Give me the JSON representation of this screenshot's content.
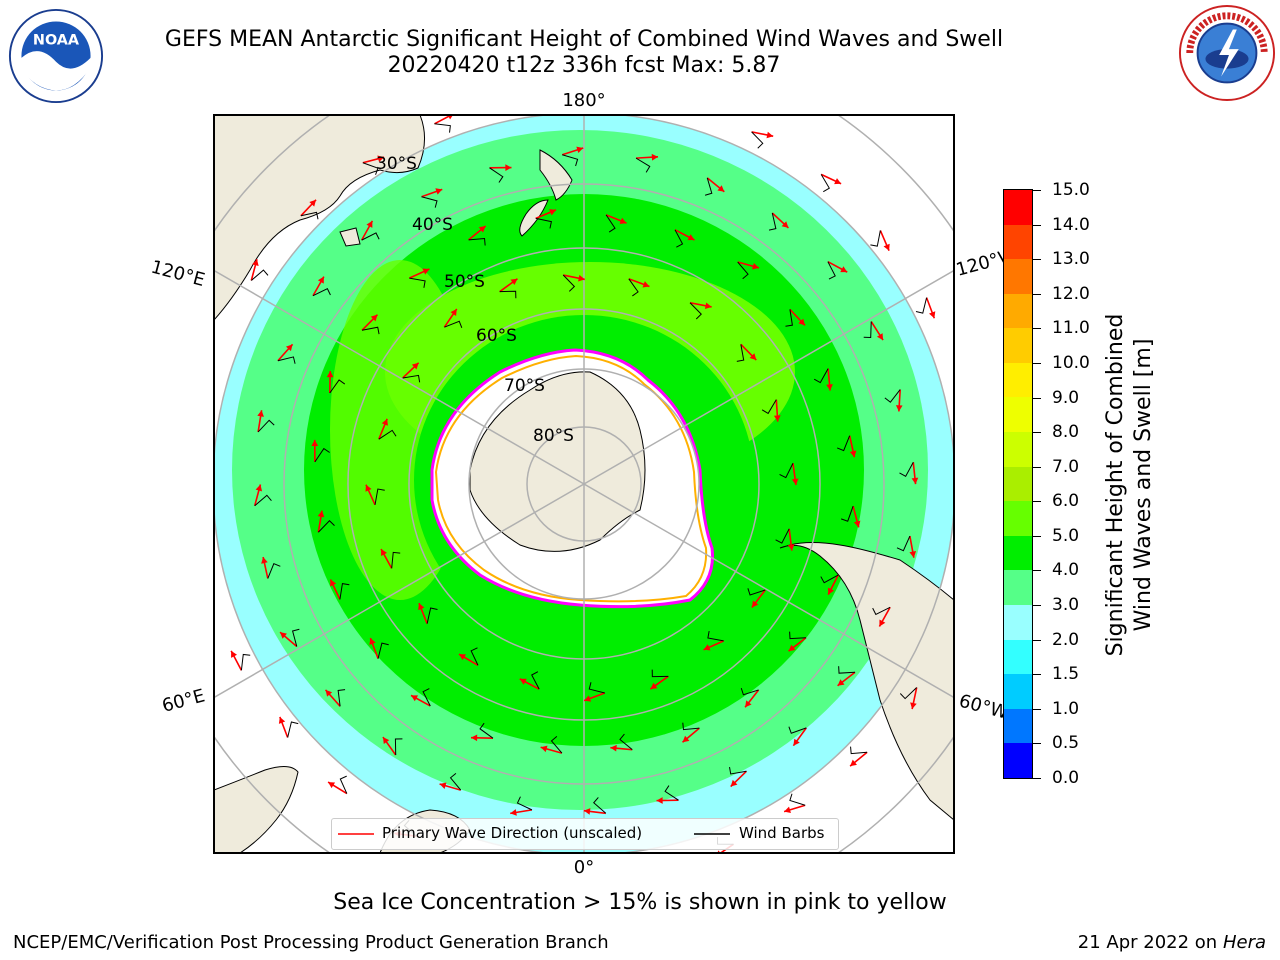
{
  "title": {
    "line1": "GEFS MEAN Antarctic Significant Height of Combined Wind Waves and Swell",
    "line2": "20220420 t12z 336h fcst   Max: 5.87"
  },
  "map": {
    "projection": "south-polar-stereographic",
    "longitude_labels": {
      "top": "180°",
      "bottom": "0°",
      "upper_left": "120°E",
      "lower_left": "60°E",
      "upper_right": "120°W",
      "lower_right": "60°W"
    },
    "latitude_labels": [
      "30°S",
      "40°S",
      "50°S",
      "60°S",
      "70°S",
      "80°S"
    ],
    "colors": {
      "land": "#efebdc",
      "coast": "#000000",
      "grid": "#b0b0b0",
      "arrows": "#ff0000",
      "ice_pink": "#ff00ff",
      "ice_yellow": "#ffd700"
    }
  },
  "colorbar": {
    "title": "Significant Height of Combined Wind Waves and Swell [m]",
    "title_line1": "Significant Height of Combined",
    "title_line2": "Wind Waves and Swell [m]",
    "ticks": [
      "0.0",
      "0.5",
      "1.0",
      "1.5",
      "2.0",
      "3.0",
      "4.0",
      "5.0",
      "6.0",
      "7.0",
      "8.0",
      "9.0",
      "10.0",
      "11.0",
      "12.0",
      "13.0",
      "14.0",
      "15.0"
    ],
    "colors": [
      "#0000ff",
      "#0077ff",
      "#00ccff",
      "#33ffff",
      "#99ffff",
      "#55ff88",
      "#00ee00",
      "#66ff00",
      "#aaee00",
      "#ccff00",
      "#eeff00",
      "#ffee00",
      "#ffcc00",
      "#ffaa00",
      "#ff7700",
      "#ff4400",
      "#ff0000"
    ]
  },
  "legend": {
    "primary_wave": "Primary Wave Direction (unscaled)",
    "wind_barbs": "Wind Barbs"
  },
  "ice_note": "Sea Ice Concentration > 15% is shown in pink to yellow",
  "footer": {
    "left": "NCEP/EMC/Verification Post Processing Product Generation Branch",
    "right_date": "21 Apr 2022 on ",
    "right_machine": "Hera"
  }
}
